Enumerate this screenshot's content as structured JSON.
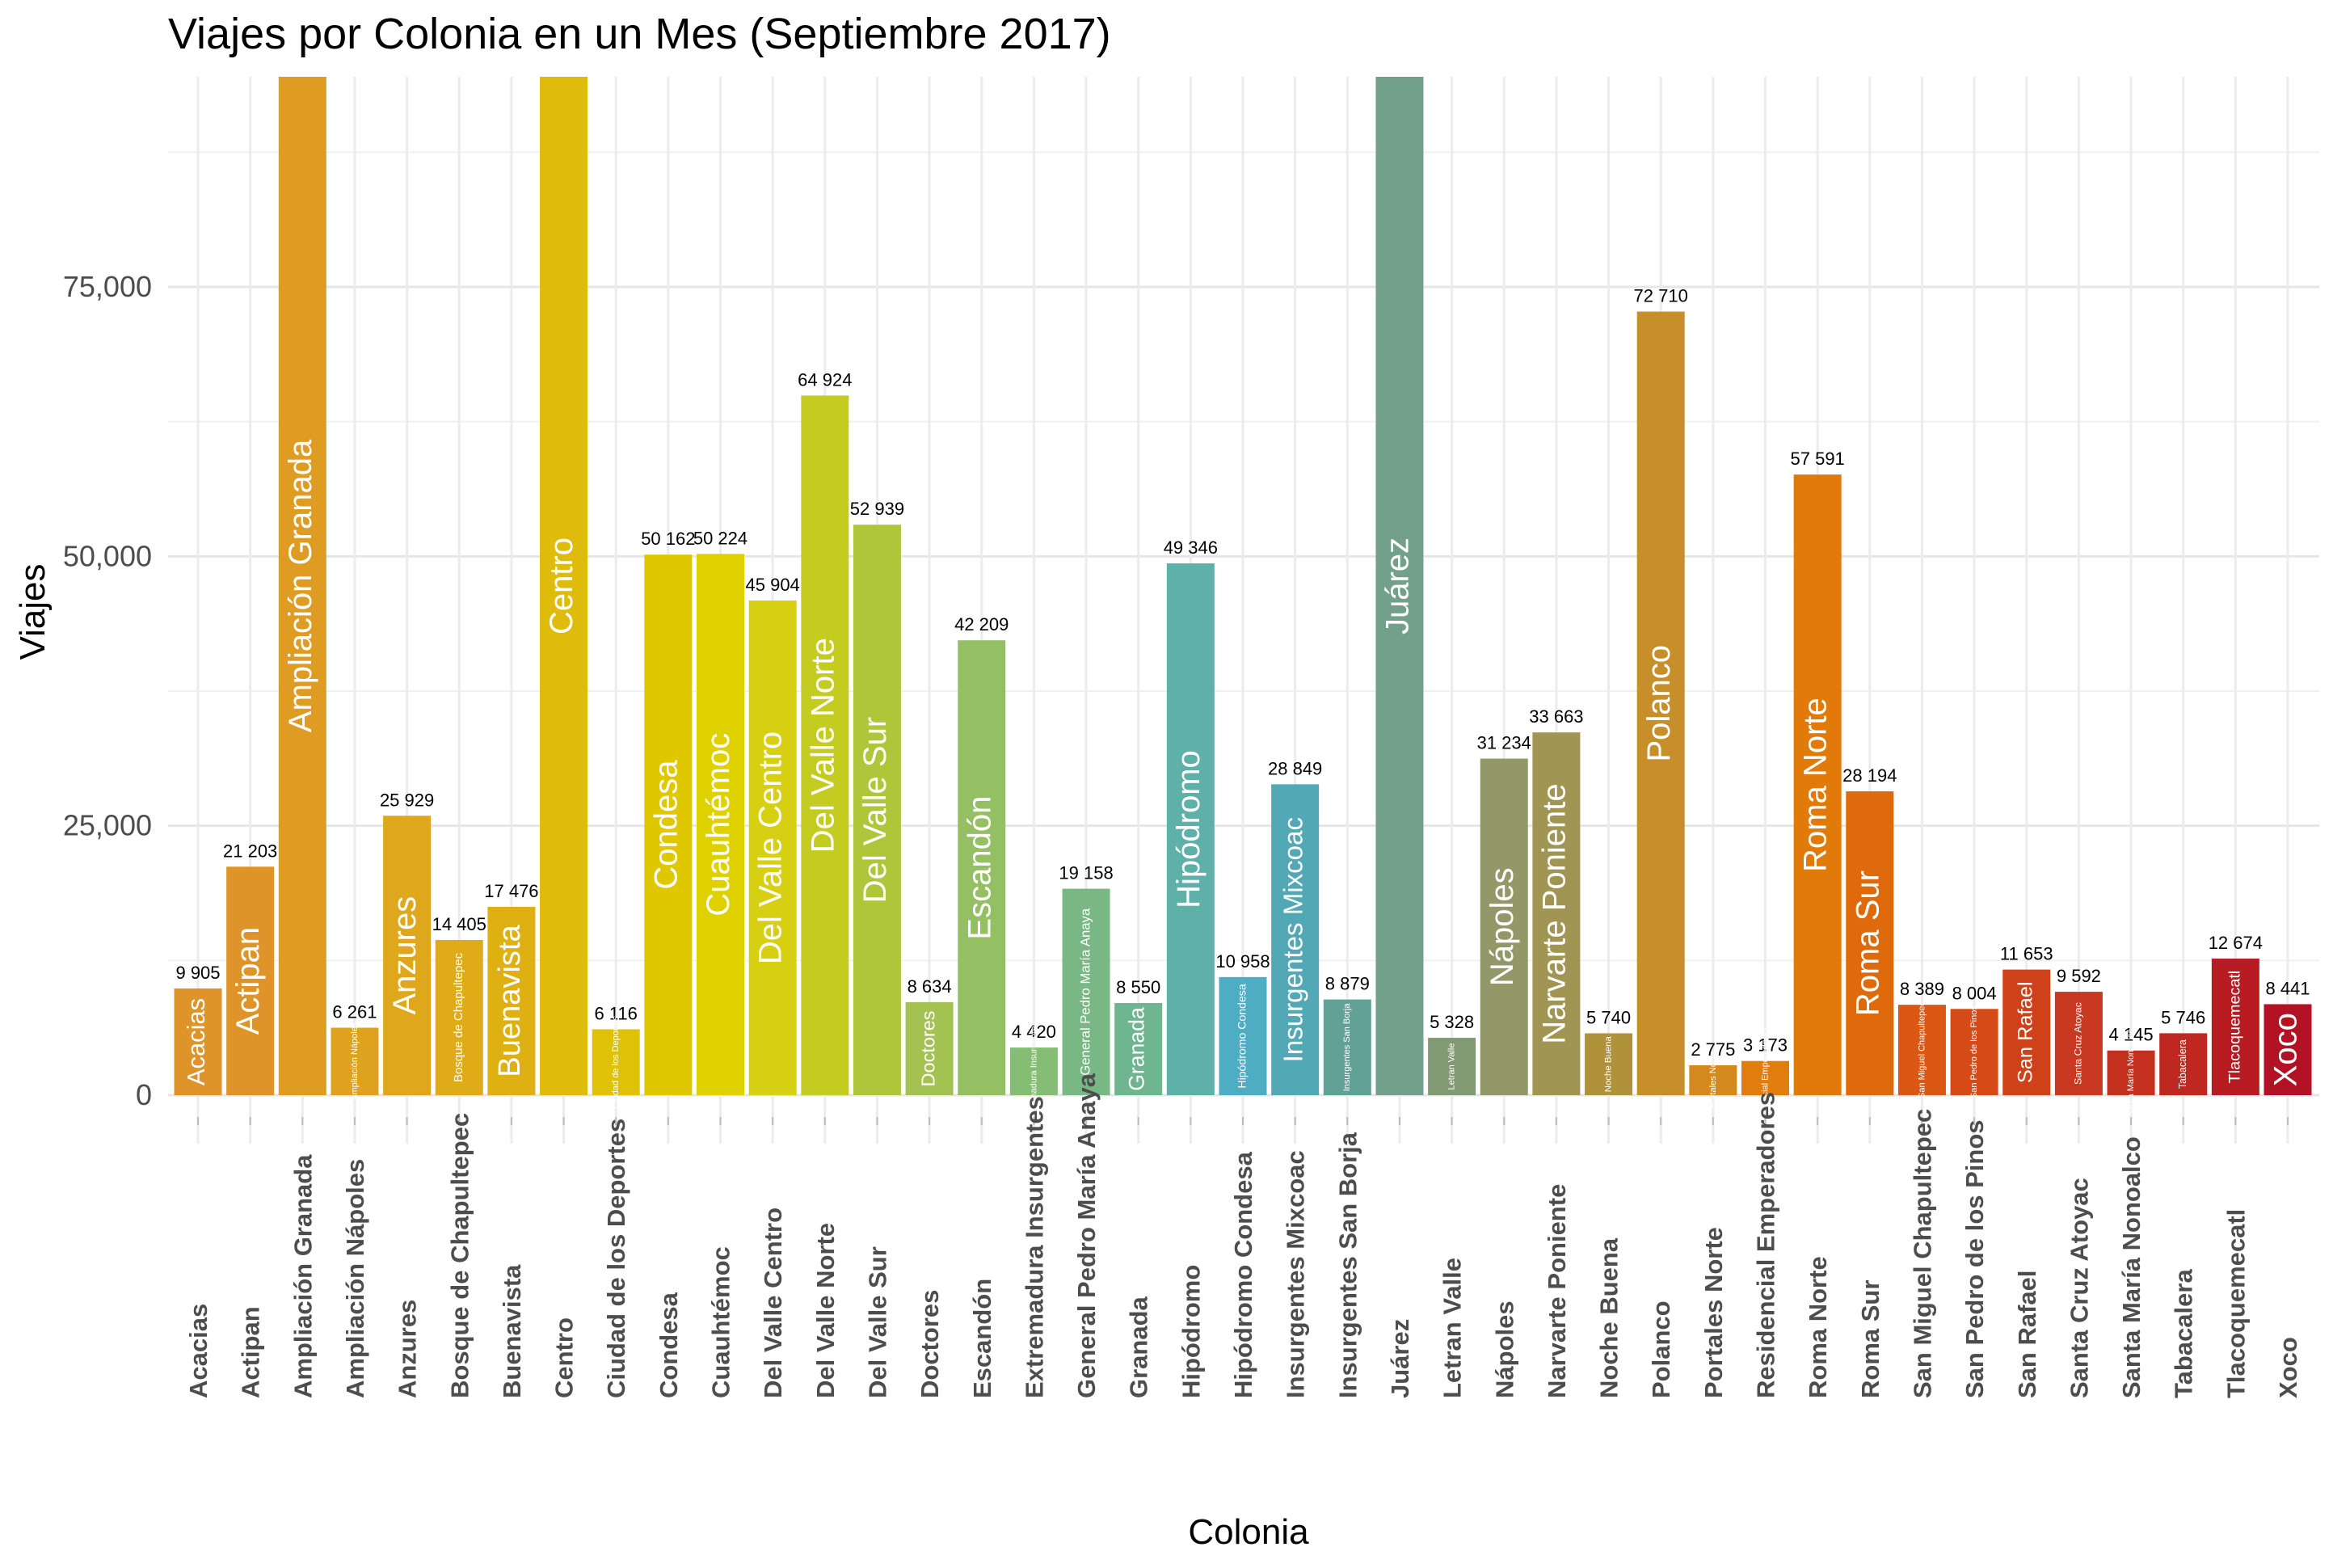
{
  "chart_data": {
    "type": "bar",
    "title": "Viajes por Colonia en un Mes (Septiembre 2017)",
    "xlabel": "Colonia",
    "ylabel": "Viajes",
    "ylim": [
      0,
      94000
    ],
    "y_ticks": [
      "0",
      "25,000",
      "50,000",
      "75,000"
    ],
    "y_tick_values": [
      0,
      25000,
      50000,
      75000
    ],
    "grid": true,
    "legend": "none",
    "categories": [
      "Acacias",
      "Actipan",
      "Ampliación Granada",
      "Ampliación Nápoles",
      "Anzures",
      "Bosque de Chapultepec",
      "Buenavista",
      "Centro",
      "Ciudad de los Deportes",
      "Condesa",
      "Cuauhtémoc",
      "Del Valle Centro",
      "Del Valle Norte",
      "Del Valle Sur",
      "Doctores",
      "Escandón",
      "Extremadura Insurgentes",
      "General Pedro María Anaya",
      "Granada",
      "Hipódromo",
      "Hipódromo Condesa",
      "Insurgentes Mixcoac",
      "Insurgentes San Borja",
      "Juárez",
      "Letran Valle",
      "Nápoles",
      "Narvarte Poniente",
      "Noche Buena",
      "Polanco",
      "Portales Norte",
      "Residencial Emperadores",
      "Roma Norte",
      "Roma Sur",
      "San Miguel Chapultepec",
      "San Pedro de los Pinos",
      "San Rafael",
      "Santa Cruz Atoyac",
      "Santa María Nonoalco",
      "Tabacalera",
      "Tlacoquemecatl",
      "Xoco"
    ],
    "values": [
      9905,
      21203,
      95000,
      6261,
      25929,
      14405,
      17476,
      95000,
      6116,
      50162,
      50224,
      45904,
      64924,
      52939,
      8634,
      42209,
      4420,
      19158,
      8550,
      49346,
      10958,
      28849,
      8879,
      95000,
      5328,
      31234,
      33663,
      5740,
      72710,
      2775,
      3173,
      57591,
      28194,
      8389,
      8004,
      11653,
      9592,
      4145,
      5746,
      12674,
      8441
    ],
    "value_labels": [
      "9 905",
      "21 203",
      "",
      "6 261",
      "25 929",
      "14 405",
      "17 476",
      "",
      "6 116",
      "50 162",
      "50 224",
      "45 904",
      "64 924",
      "52 939",
      "8 634",
      "42 209",
      "4 420",
      "19 158",
      "8 550",
      "49 346",
      "10 958",
      "28 849",
      "8 879",
      "",
      "5 328",
      "31 234",
      "33 663",
      "5 740",
      "72 710",
      "2 775",
      "3 173",
      "57 591",
      "28 194",
      "8 389",
      "8 004",
      "11 653",
      "9 592",
      "4 145",
      "5 746",
      "12 674",
      "8 441"
    ],
    "colors": [
      "#de9428",
      "#de9428",
      "#de9c22",
      "#dea21e",
      "#dfa71c",
      "#dfac18",
      "#dfb012",
      "#dfbb0c",
      "#dfc108",
      "#e0c800",
      "#dfd000",
      "#d6cf12",
      "#c4cc22",
      "#b0c63a",
      "#a3c252",
      "#94bf63",
      "#85bd74",
      "#79b884",
      "#6eb590",
      "#5fb0a8",
      "#4eadc3",
      "#52a8b4",
      "#62a196",
      "#72a08a",
      "#829a74",
      "#929868",
      "#a19554",
      "#b0923a",
      "#c68f2a",
      "#d4891c",
      "#e07d0e",
      "#e17a08",
      "#df6a0c",
      "#da5814",
      "#d54a16",
      "#cf4119",
      "#c93820",
      "#c4301e",
      "#be2820",
      "#b81c22",
      "#b31224"
    ]
  }
}
